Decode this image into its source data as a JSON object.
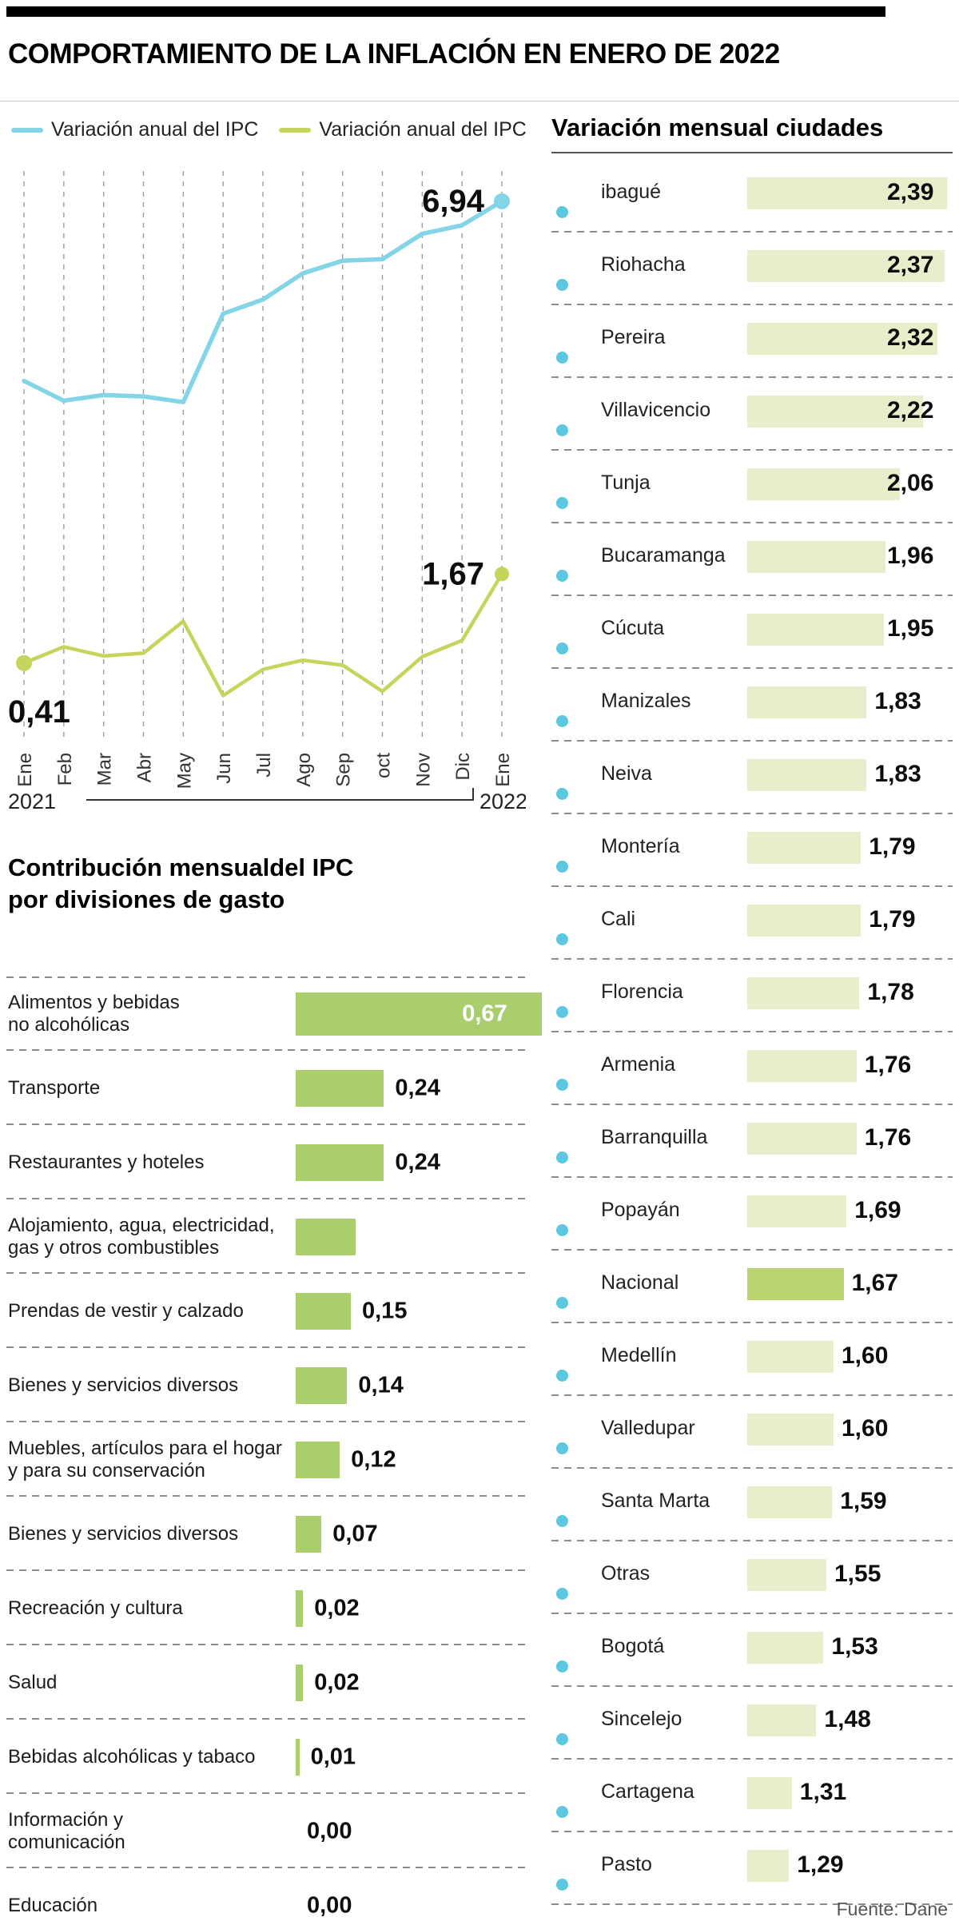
{
  "page": {
    "title": "COMPORTAMIENTO DE LA INFLACIÓN EN ENERO DE 2022",
    "source": "Fuente: Dane"
  },
  "colors": {
    "blue_line": "#82d4e6",
    "green_line": "#c6d45c",
    "contribution_bar": "#aacd6e",
    "city_bar": "#e8eeca",
    "nacional_bar": "#b9d36e",
    "city_dot_blue": "#5ec7e0"
  },
  "legend": [
    {
      "label": "Variación anual del IPC",
      "color": "#82d4e6"
    },
    {
      "label": "Variación anual del IPC",
      "color": "#c6d45c"
    }
  ],
  "chart_data": [
    {
      "type": "line",
      "title": "Variación del IPC",
      "categories": [
        "Ene",
        "Feb",
        "Mar",
        "Abr",
        "May",
        "Jun",
        "Jul",
        "Ago",
        "Sep",
        "oct",
        "Nov",
        "Dic",
        "Ene"
      ],
      "year_left": "2021",
      "year_right": "2022",
      "ylim": [
        -0.7,
        7.3
      ],
      "grid": "vertical-dashed",
      "series": [
        {
          "name": "Variación anual del IPC",
          "color": "#82d4e6",
          "values": [
            4.4,
            4.12,
            4.2,
            4.18,
            4.1,
            5.35,
            5.55,
            5.92,
            6.1,
            6.12,
            6.48,
            6.6,
            6.94
          ],
          "end_label": "6,94"
        },
        {
          "name": "Variación anual del IPC",
          "color": "#c6d45c",
          "values": [
            0.41,
            0.64,
            0.51,
            0.55,
            1.0,
            -0.05,
            0.32,
            0.45,
            0.38,
            0.01,
            0.5,
            0.73,
            1.67
          ],
          "start_label": "0,41",
          "end_label": "1,67"
        }
      ]
    },
    {
      "type": "bar",
      "title": "Contribución mensualdel IPC por divisiones de gasto",
      "title_lines": [
        "Contribución mensualdel IPC",
        "por divisiones de gasto"
      ],
      "orientation": "horizontal",
      "categories": [
        "Alimentos y bebidas\nno alcohólicas",
        "Transporte",
        "Restaurantes y hoteles",
        "Alojamiento, agua, electricidad,\ngas y otros combustibles",
        "Prendas de vestir y calzado",
        "Bienes y servicios diversos",
        "Muebles, artículos para el hogar\ny para su conservación",
        "Bienes y servicios diversos",
        "Recreación y cultura",
        "Salud",
        "Bebidas alcohólicas y tabaco",
        "Información y\ncomunicación",
        "Educación"
      ],
      "values": [
        0.67,
        0.24,
        0.24,
        null,
        0.15,
        0.14,
        0.12,
        0.07,
        0.02,
        0.02,
        0.01,
        0.0,
        0.0
      ]
    },
    {
      "type": "bar",
      "title": "Variación mensual ciudades",
      "orientation": "horizontal",
      "highlight_category": "Nacional",
      "categories": [
        "ibagué",
        "Riohacha",
        "Pereira",
        "Villavicencio",
        "Tunja",
        "Bucaramanga",
        "Cúcuta",
        "Manizales",
        "Neiva",
        "Montería",
        "Cali",
        "Florencia",
        "Armenia",
        "Barranquilla",
        "Popayán",
        "Nacional",
        "Medellín",
        "Valledupar",
        "Santa Marta",
        "Otras",
        "Bogotá",
        "Sincelejo",
        "Cartagena",
        "Pasto"
      ],
      "values": [
        2.39,
        2.37,
        2.32,
        2.22,
        2.06,
        1.96,
        1.95,
        1.83,
        1.83,
        1.79,
        1.79,
        1.78,
        1.76,
        1.76,
        1.69,
        1.67,
        1.6,
        1.6,
        1.59,
        1.55,
        1.53,
        1.48,
        1.31,
        1.29
      ]
    }
  ]
}
